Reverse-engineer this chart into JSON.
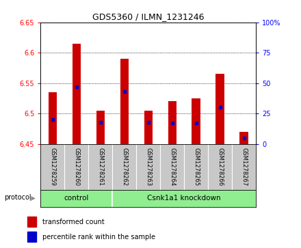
{
  "title": "GDS5360 / ILMN_1231246",
  "samples": [
    "GSM1278259",
    "GSM1278260",
    "GSM1278261",
    "GSM1278262",
    "GSM1278263",
    "GSM1278264",
    "GSM1278265",
    "GSM1278266",
    "GSM1278267"
  ],
  "transformed_count_top": [
    6.535,
    6.615,
    6.505,
    6.59,
    6.505,
    6.52,
    6.525,
    6.565,
    6.47
  ],
  "transformed_count_bottom": [
    6.45,
    6.45,
    6.45,
    6.45,
    6.45,
    6.45,
    6.45,
    6.45,
    6.45
  ],
  "percentile_rank": [
    20,
    47,
    18,
    43,
    18,
    17,
    17,
    30,
    5
  ],
  "ylim_left": [
    6.45,
    6.65
  ],
  "ylim_right": [
    0,
    100
  ],
  "yticks_left": [
    6.45,
    6.5,
    6.55,
    6.6,
    6.65
  ],
  "yticks_right": [
    0,
    25,
    50,
    75,
    100
  ],
  "bar_color": "#cc0000",
  "dot_color": "#0000cc",
  "control_count": 3,
  "knockdown_count": 6,
  "control_label": "control",
  "knockdown_label": "Csnk1a1 knockdown",
  "protocol_label": "protocol",
  "legend_items": [
    {
      "label": "transformed count",
      "color": "#cc0000"
    },
    {
      "label": "percentile rank within the sample",
      "color": "#0000cc"
    }
  ],
  "group_area_color": "#90ee90",
  "tick_area_color": "#c8c8c8",
  "bar_width": 0.35,
  "dot_size": 3
}
